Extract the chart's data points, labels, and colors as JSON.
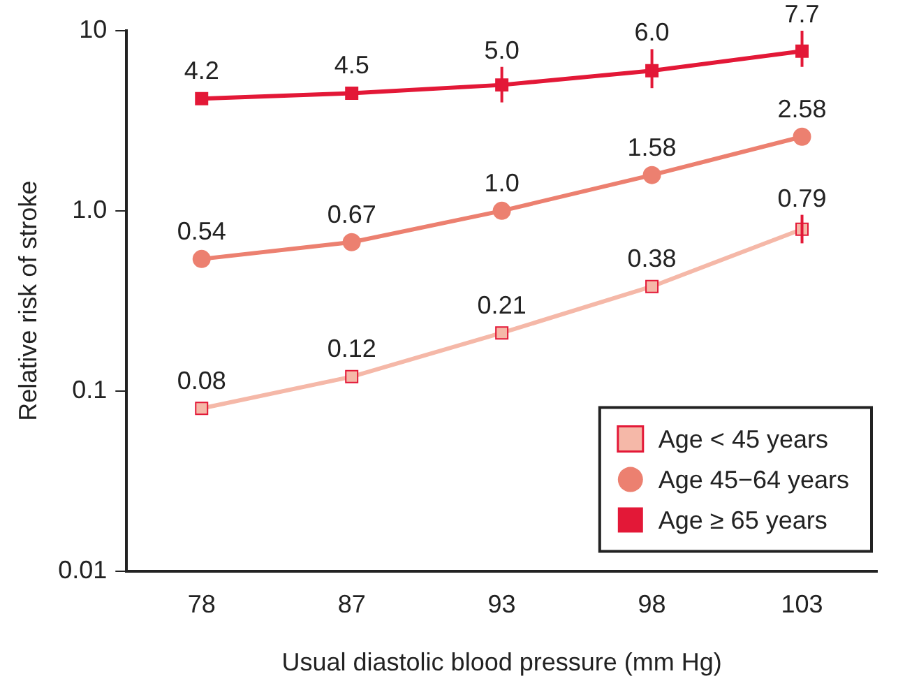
{
  "chart_data": {
    "type": "line",
    "xlabel": "Usual diastolic blood pressure (mm Hg)",
    "ylabel": "Relative risk of stroke",
    "categories": [
      "78",
      "87",
      "93",
      "98",
      "103"
    ],
    "log": "y",
    "ylim": [
      0.01,
      10
    ],
    "yticks": [
      0.01,
      0.1,
      {
        "value": 1,
        "label": "1.0"
      },
      10
    ],
    "grid": false,
    "legend": "bottom right",
    "data_labels": true,
    "series": [
      {
        "name": "Age < 45 years",
        "color": "#f5b8a8",
        "marker": "square",
        "values": [
          0.08,
          0.12,
          0.21,
          0.38,
          0.79
        ],
        "errors": [
          null,
          null,
          null,
          null,
          [
            0.66,
            0.95
          ]
        ]
      },
      {
        "name": "Age 45−64 years",
        "color": "#ec8070",
        "marker": "circle",
        "values": [
          0.54,
          0.67,
          1.0,
          1.58,
          2.58
        ],
        "value_labels": [
          "0.54",
          "0.67",
          "1.0",
          "1.58",
          "2.58"
        ]
      },
      {
        "name": "Age ≥ 65 years",
        "color": "#e31837",
        "marker": "square",
        "values": [
          4.2,
          4.5,
          5.0,
          6.0,
          7.7
        ],
        "value_labels": [
          "4.2",
          "4.5",
          "5.0",
          "6.0",
          "7.7"
        ],
        "errors": [
          null,
          null,
          [
            4.0,
            6.3
          ],
          [
            4.8,
            7.9
          ],
          [
            6.3,
            10
          ]
        ]
      }
    ]
  }
}
